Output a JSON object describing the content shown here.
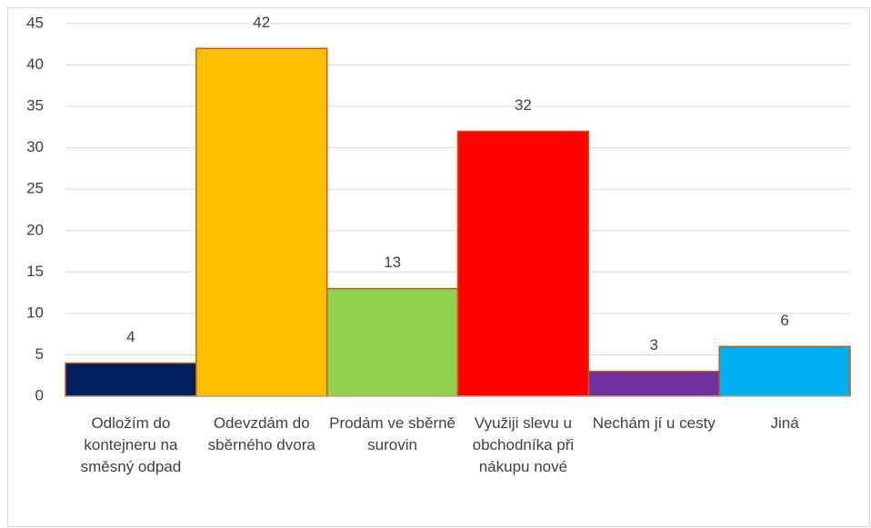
{
  "chart_data": {
    "type": "bar",
    "categories": [
      "Odložím do kontejneru na směsný odpad",
      "Odevzdám do sběrného dvora",
      "Prodám ve sběrně surovin",
      "Využiji slevu u obchodníka při nákupu nové",
      "Nechám jí u cesty",
      "Jiná"
    ],
    "values": [
      4,
      42,
      13,
      32,
      3,
      6
    ],
    "colors": [
      "#002060",
      "#ffc000",
      "#92d050",
      "#ff0000",
      "#7030a0",
      "#00b0f0"
    ],
    "edge_color": "#c55a11",
    "ylim": [
      0,
      45
    ],
    "yticks": [
      0,
      5,
      10,
      15,
      20,
      25,
      30,
      35,
      40,
      45
    ],
    "grid": true
  }
}
